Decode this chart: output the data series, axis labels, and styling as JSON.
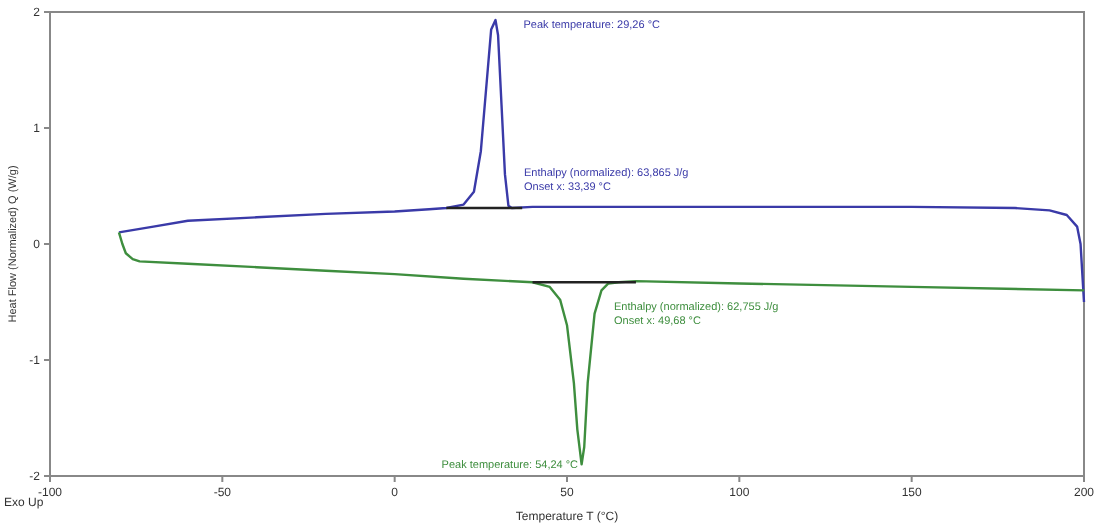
{
  "chart_data": {
    "type": "line",
    "xlabel": "Temperature T (°C)",
    "ylabel": "Heat Flow (Normalized) Q (W/g)",
    "xlim": [
      -100,
      200
    ],
    "ylim": [
      -2,
      2
    ],
    "xticks": [
      -100,
      -50,
      0,
      50,
      100,
      150,
      200
    ],
    "yticks": [
      -2,
      -1,
      0,
      1,
      2
    ],
    "grid": false,
    "series": [
      {
        "color": "#3a3aa8",
        "x": [
          -80,
          -70,
          -60,
          -40,
          -20,
          0,
          10,
          15,
          20,
          23,
          25,
          27,
          28,
          29.26,
          30,
          31,
          32,
          33,
          34,
          40,
          60,
          100,
          150,
          180,
          190,
          195,
          198,
          199,
          200
        ],
        "values": [
          0.1,
          0.15,
          0.2,
          0.23,
          0.26,
          0.28,
          0.3,
          0.31,
          0.34,
          0.45,
          0.8,
          1.5,
          1.85,
          1.93,
          1.8,
          1.2,
          0.6,
          0.33,
          0.31,
          0.32,
          0.32,
          0.32,
          0.32,
          0.31,
          0.29,
          0.25,
          0.15,
          0,
          -0.5
        ]
      },
      {
        "color": "#3e8e3e",
        "x": [
          -80,
          -79,
          -78,
          -76,
          -74,
          -60,
          -40,
          -20,
          0,
          20,
          40,
          45,
          48,
          50,
          52,
          53,
          54.24,
          55,
          56,
          58,
          60,
          62,
          65,
          70,
          100,
          150,
          200
        ],
        "values": [
          0.1,
          0,
          -0.08,
          -0.13,
          -0.15,
          -0.17,
          -0.2,
          -0.23,
          -0.26,
          -0.3,
          -0.33,
          -0.37,
          -0.48,
          -0.7,
          -1.2,
          -1.6,
          -1.9,
          -1.75,
          -1.2,
          -0.6,
          -0.4,
          -0.34,
          -0.33,
          -0.32,
          -0.34,
          -0.37,
          -0.4
        ]
      },
      {
        "color": "#222222",
        "x": [
          15,
          37
        ],
        "values": [
          0.31,
          0.31
        ]
      },
      {
        "color": "#222222",
        "x": [
          40,
          70
        ],
        "values": [
          -0.33,
          -0.33
        ]
      }
    ],
    "annotations": [
      {
        "text": "Peak temperature: 29,26 °C",
        "x": 29.26,
        "y": 1.93
      },
      "Enthalpy (normalized): 63,865 J/g",
      "Onset x: 33,39 °C",
      "Enthalpy (normalized): 62,755 J/g",
      "Onset x: 49,68 °C",
      {
        "text": "Peak temperature: 54,24 °C",
        "x": 54.24,
        "y": -1.9
      },
      "Exo Up"
    ]
  }
}
